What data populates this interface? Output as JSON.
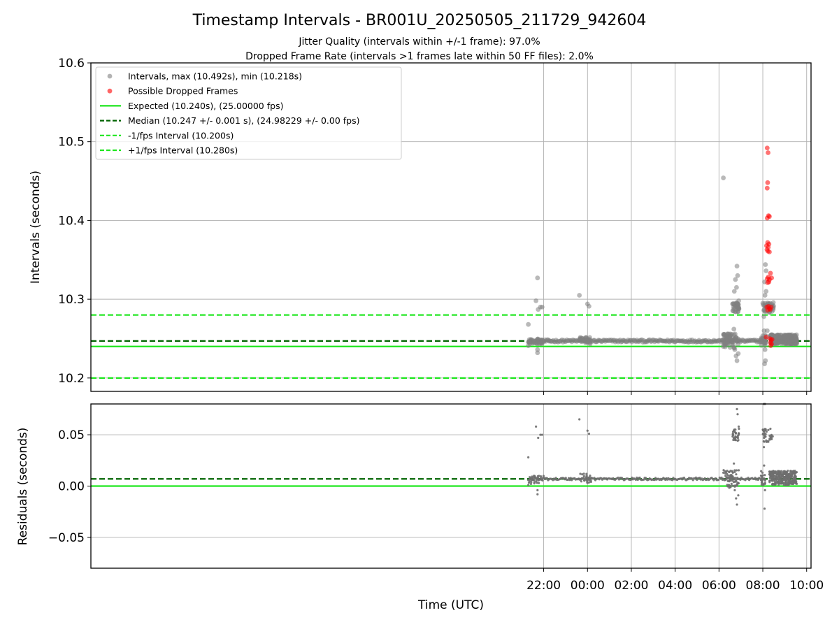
{
  "chart_data": [
    {
      "type": "scatter",
      "title": "Timestamp Intervals - BR001U_20250505_211729_942604",
      "subtitles": [
        "Jitter Quality (intervals within +/-1 frame): 97.0%",
        "Dropped Frame Rate (intervals >1 frames late within 50 FF files): 2.0%"
      ],
      "xlabel": "",
      "ylabel": "Intervals (seconds)",
      "x_unit": "hours since 00:00 UTC",
      "xlim": [
        -22.66,
        10.2
      ],
      "ylim": [
        10.183,
        10.6
      ],
      "y_ticks": [
        "10.2",
        "10.3",
        "10.4",
        "10.5",
        "10.6"
      ],
      "x_ticks": [
        "22:00",
        "00:00",
        "02:00",
        "04:00",
        "06:00",
        "08:00",
        "10:00"
      ],
      "grid": true,
      "legend_position": "upper-left",
      "legend": [
        {
          "label": "Intervals, max (10.492s), min (10.218s)",
          "kind": "dot",
          "color": "#808080"
        },
        {
          "label": "Possible Dropped Frames",
          "kind": "dot",
          "color": "#ff0000"
        },
        {
          "label": "Expected (10.240s), (25.00000 fps)",
          "kind": "solid",
          "color": "#1ee61e"
        },
        {
          "label": "Median (10.247 +/- 0.001 s), (24.98229 +/- 0.00 fps)",
          "kind": "dashed",
          "color": "#006400"
        },
        {
          "label": "-1/fps Interval (10.200s)",
          "kind": "dashed",
          "color": "#1ee61e"
        },
        {
          "label": "+1/fps Interval (10.280s)",
          "kind": "dashed",
          "color": "#1ee61e"
        }
      ],
      "hlines": [
        {
          "y": 10.24,
          "style": "solid",
          "color": "#1ee61e"
        },
        {
          "y": 10.247,
          "style": "dashed",
          "color": "#006400"
        },
        {
          "y": 10.2,
          "style": "dashed",
          "color": "#1ee61e"
        },
        {
          "y": 10.28,
          "style": "dashed",
          "color": "#1ee61e"
        }
      ],
      "series": [
        {
          "name": "Intervals",
          "color": "#808080",
          "baseline_segments": [
            {
              "x_start": -2.7,
              "x_end": -1.75,
              "y": 10.247
            },
            {
              "x_start": -1.75,
              "x_end": 8.1,
              "y": 10.247
            },
            {
              "x_start": 8.4,
              "x_end": 9.55,
              "y": 10.248
            }
          ],
          "points": [
            {
              "x": -2.7,
              "y": 10.268
            },
            {
              "x": -2.7,
              "y": 10.241
            },
            {
              "x": -2.35,
              "y": 10.298
            },
            {
              "x": -2.28,
              "y": 10.327
            },
            {
              "x": -2.25,
              "y": 10.287
            },
            {
              "x": -2.15,
              "y": 10.29
            },
            {
              "x": -2.07,
              "y": 10.29
            },
            {
              "x": -2.28,
              "y": 10.232
            },
            {
              "x": -2.28,
              "y": 10.236
            },
            {
              "x": -0.37,
              "y": 10.305
            },
            {
              "x": 0.0,
              "y": 10.294
            },
            {
              "x": 0.07,
              "y": 10.291
            },
            {
              "x": 6.2,
              "y": 10.454
            },
            {
              "x": 6.2,
              "y": 10.24
            },
            {
              "x": 6.62,
              "y": 10.294
            },
            {
              "x": 6.72,
              "y": 10.29
            },
            {
              "x": 6.8,
              "y": 10.315
            },
            {
              "x": 6.82,
              "y": 10.342
            },
            {
              "x": 6.85,
              "y": 10.33
            },
            {
              "x": 6.75,
              "y": 10.325
            },
            {
              "x": 6.7,
              "y": 10.31
            },
            {
              "x": 6.9,
              "y": 10.298
            },
            {
              "x": 6.78,
              "y": 10.284
            },
            {
              "x": 6.68,
              "y": 10.262
            },
            {
              "x": 6.78,
              "y": 10.228
            },
            {
              "x": 6.82,
              "y": 10.222
            },
            {
              "x": 6.72,
              "y": 10.236
            },
            {
              "x": 6.88,
              "y": 10.231
            },
            {
              "x": 8.0,
              "y": 10.295
            },
            {
              "x": 8.05,
              "y": 10.278
            },
            {
              "x": 8.08,
              "y": 10.218
            },
            {
              "x": 8.1,
              "y": 10.236
            },
            {
              "x": 8.12,
              "y": 10.344
            },
            {
              "x": 8.15,
              "y": 10.336
            },
            {
              "x": 8.15,
              "y": 10.31
            },
            {
              "x": 8.2,
              "y": 10.26
            },
            {
              "x": 8.08,
              "y": 10.322
            },
            {
              "x": 8.1,
              "y": 10.305
            },
            {
              "x": 8.06,
              "y": 10.26
            },
            {
              "x": 8.12,
              "y": 10.222
            }
          ],
          "clusters": [
            {
              "x_start": -2.7,
              "x_end": -2.0,
              "y_min": 10.242,
              "y_max": 10.25,
              "n": 30
            },
            {
              "x_start": -0.35,
              "x_end": 0.2,
              "y_min": 10.243,
              "y_max": 10.252,
              "n": 25
            },
            {
              "x_start": 6.2,
              "x_end": 6.9,
              "y_min": 10.238,
              "y_max": 10.256,
              "n": 60
            },
            {
              "x_start": 6.62,
              "x_end": 6.92,
              "y_min": 10.284,
              "y_max": 10.296,
              "n": 30
            },
            {
              "x_start": 8.0,
              "x_end": 8.5,
              "y_min": 10.283,
              "y_max": 10.296,
              "n": 40
            },
            {
              "x_start": 7.9,
              "x_end": 8.15,
              "y_min": 10.24,
              "y_max": 10.255,
              "n": 20
            },
            {
              "x_start": 8.35,
              "x_end": 9.55,
              "y_min": 10.243,
              "y_max": 10.255,
              "n": 260
            }
          ]
        },
        {
          "name": "Possible Dropped Frames",
          "color": "#ff0000",
          "points": [
            {
              "x": 8.2,
              "y": 10.492
            },
            {
              "x": 8.24,
              "y": 10.486
            },
            {
              "x": 8.22,
              "y": 10.448
            },
            {
              "x": 8.2,
              "y": 10.441
            },
            {
              "x": 8.26,
              "y": 10.406
            },
            {
              "x": 8.3,
              "y": 10.405
            },
            {
              "x": 8.2,
              "y": 10.403
            },
            {
              "x": 8.17,
              "y": 10.368
            },
            {
              "x": 8.22,
              "y": 10.372
            },
            {
              "x": 8.25,
              "y": 10.366
            },
            {
              "x": 8.28,
              "y": 10.37
            },
            {
              "x": 8.23,
              "y": 10.361
            },
            {
              "x": 8.3,
              "y": 10.36
            },
            {
              "x": 8.19,
              "y": 10.363
            },
            {
              "x": 8.2,
              "y": 10.326
            },
            {
              "x": 8.25,
              "y": 10.328
            },
            {
              "x": 8.3,
              "y": 10.325
            },
            {
              "x": 8.35,
              "y": 10.333
            },
            {
              "x": 8.4,
              "y": 10.327
            },
            {
              "x": 8.22,
              "y": 10.321
            },
            {
              "x": 8.28,
              "y": 10.322
            },
            {
              "x": 8.15,
              "y": 10.252
            },
            {
              "x": 8.18,
              "y": 10.29
            },
            {
              "x": 8.22,
              "y": 10.286
            },
            {
              "x": 8.26,
              "y": 10.291
            },
            {
              "x": 8.3,
              "y": 10.288
            },
            {
              "x": 8.34,
              "y": 10.287
            },
            {
              "x": 8.38,
              "y": 10.29
            },
            {
              "x": 8.32,
              "y": 10.25
            },
            {
              "x": 8.35,
              "y": 10.245
            },
            {
              "x": 8.38,
              "y": 10.248
            },
            {
              "x": 8.4,
              "y": 10.243
            },
            {
              "x": 8.42,
              "y": 10.249
            },
            {
              "x": 8.36,
              "y": 10.241
            }
          ]
        }
      ]
    },
    {
      "type": "scatter",
      "title": "",
      "xlabel": "Time (UTC)",
      "ylabel": "Residuals (seconds)",
      "x_unit": "hours since 00:00 UTC",
      "xlim": [
        -22.66,
        10.2
      ],
      "ylim": [
        -0.08,
        0.08
      ],
      "y_ticks": [
        "−0.05",
        "0.00",
        "0.05"
      ],
      "x_ticks": [
        "22:00",
        "00:00",
        "02:00",
        "04:00",
        "06:00",
        "08:00",
        "10:00"
      ],
      "grid": true,
      "hlines": [
        {
          "y": 0.0,
          "style": "solid",
          "color": "#1ee61e"
        },
        {
          "y": 0.007,
          "style": "dashed",
          "color": "#006400"
        }
      ],
      "series": [
        {
          "name": "Residuals",
          "color": "#6e6e6e",
          "baseline_segments": [
            {
              "x_start": -2.7,
              "x_end": 8.1,
              "y": 0.007
            }
          ],
          "points": [
            {
              "x": -2.7,
              "y": 0.028
            },
            {
              "x": -2.7,
              "y": 0.001
            },
            {
              "x": -2.35,
              "y": 0.058
            },
            {
              "x": -2.25,
              "y": 0.047
            },
            {
              "x": -2.15,
              "y": 0.05
            },
            {
              "x": -2.07,
              "y": 0.05
            },
            {
              "x": -2.28,
              "y": -0.008
            },
            {
              "x": -2.28,
              "y": -0.004
            },
            {
              "x": -0.37,
              "y": 0.065
            },
            {
              "x": 0.0,
              "y": 0.054
            },
            {
              "x": 0.07,
              "y": 0.051
            },
            {
              "x": 6.2,
              "y": 0.013
            },
            {
              "x": 6.82,
              "y": 0.075
            },
            {
              "x": 6.85,
              "y": 0.07
            },
            {
              "x": 6.75,
              "y": 0.055
            },
            {
              "x": 6.9,
              "y": 0.058
            },
            {
              "x": 6.78,
              "y": -0.012
            },
            {
              "x": 6.82,
              "y": -0.018
            },
            {
              "x": 6.72,
              "y": -0.004
            },
            {
              "x": 6.88,
              "y": -0.009
            },
            {
              "x": 6.68,
              "y": 0.022
            },
            {
              "x": 8.05,
              "y": 0.08
            },
            {
              "x": 8.1,
              "y": 0.08
            },
            {
              "x": 8.0,
              "y": 0.055
            },
            {
              "x": 8.08,
              "y": -0.022
            },
            {
              "x": 8.1,
              "y": -0.004
            },
            {
              "x": 8.06,
              "y": 0.02
            },
            {
              "x": 8.05,
              "y": 0.038
            }
          ],
          "clusters": [
            {
              "x_start": -2.7,
              "x_end": -2.0,
              "y_min": 0.002,
              "y_max": 0.01,
              "n": 30
            },
            {
              "x_start": -0.35,
              "x_end": 0.2,
              "y_min": 0.003,
              "y_max": 0.012,
              "n": 25
            },
            {
              "x_start": 6.2,
              "x_end": 6.9,
              "y_min": -0.002,
              "y_max": 0.016,
              "n": 60
            },
            {
              "x_start": 6.62,
              "x_end": 6.92,
              "y_min": 0.044,
              "y_max": 0.056,
              "n": 30
            },
            {
              "x_start": 8.0,
              "x_end": 8.5,
              "y_min": 0.043,
              "y_max": 0.056,
              "n": 40
            },
            {
              "x_start": 7.9,
              "x_end": 8.15,
              "y_min": 0.0,
              "y_max": 0.015,
              "n": 20
            },
            {
              "x_start": 8.3,
              "x_end": 9.55,
              "y_min": 0.001,
              "y_max": 0.015,
              "n": 280
            }
          ]
        }
      ]
    }
  ]
}
